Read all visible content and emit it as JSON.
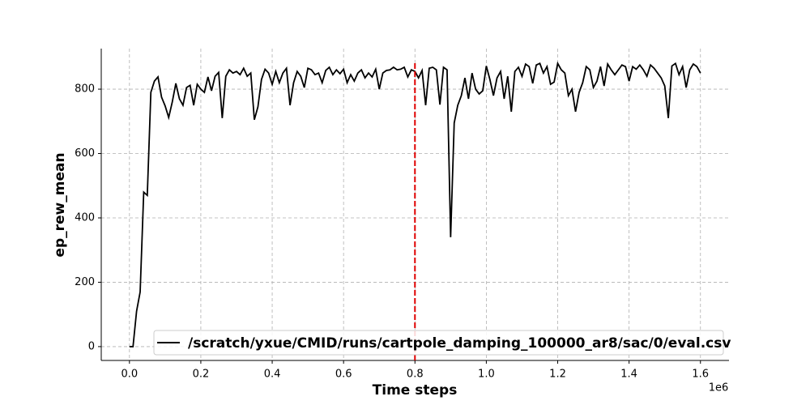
{
  "chart_data": {
    "type": "line",
    "x_label": "Time steps",
    "y_label": "ep_rew_mean",
    "x_offset_label": "1e6",
    "x": [
      0,
      10000,
      20000,
      30000,
      40000,
      50000,
      60000,
      70000,
      80000,
      90000,
      100000,
      110000,
      120000,
      130000,
      140000,
      150000,
      160000,
      170000,
      180000,
      190000,
      200000,
      210000,
      220000,
      230000,
      240000,
      250000,
      260000,
      270000,
      280000,
      290000,
      300000,
      310000,
      320000,
      330000,
      340000,
      350000,
      360000,
      370000,
      380000,
      390000,
      400000,
      410000,
      420000,
      430000,
      440000,
      450000,
      460000,
      470000,
      480000,
      490000,
      500000,
      510000,
      520000,
      530000,
      540000,
      550000,
      560000,
      570000,
      580000,
      590000,
      600000,
      610000,
      620000,
      630000,
      640000,
      650000,
      660000,
      670000,
      680000,
      690000,
      700000,
      710000,
      720000,
      730000,
      740000,
      750000,
      760000,
      770000,
      780000,
      790000,
      800000,
      810000,
      820000,
      830000,
      840000,
      850000,
      860000,
      870000,
      880000,
      890000,
      900000,
      910000,
      920000,
      930000,
      940000,
      950000,
      960000,
      970000,
      980000,
      990000,
      1000000,
      1010000,
      1020000,
      1030000,
      1040000,
      1050000,
      1060000,
      1070000,
      1080000,
      1090000,
      1100000,
      1110000,
      1120000,
      1130000,
      1140000,
      1150000,
      1160000,
      1170000,
      1180000,
      1190000,
      1200000,
      1210000,
      1220000,
      1230000,
      1240000,
      1250000,
      1260000,
      1270000,
      1280000,
      1290000,
      1300000,
      1310000,
      1320000,
      1330000,
      1340000,
      1350000,
      1360000,
      1370000,
      1380000,
      1390000,
      1400000,
      1410000,
      1420000,
      1430000,
      1440000,
      1450000,
      1460000,
      1470000,
      1480000,
      1490000,
      1500000,
      1510000,
      1520000,
      1530000,
      1540000,
      1550000,
      1560000,
      1570000,
      1580000,
      1590000,
      1600000
    ],
    "series": [
      {
        "name": "/scratch/yxue/CMID/runs/cartpole_damping_100000_ar8/sac/0/eval.csv",
        "color": "#000000",
        "values": [
          0,
          0,
          110,
          170,
          480,
          470,
          790,
          825,
          838,
          775,
          748,
          712,
          760,
          818,
          770,
          750,
          805,
          812,
          750,
          815,
          800,
          790,
          838,
          795,
          840,
          852,
          710,
          840,
          860,
          850,
          855,
          845,
          865,
          840,
          850,
          705,
          745,
          830,
          862,
          850,
          815,
          855,
          820,
          850,
          865,
          750,
          820,
          855,
          840,
          805,
          865,
          860,
          845,
          850,
          820,
          858,
          868,
          845,
          860,
          848,
          862,
          820,
          845,
          825,
          850,
          860,
          835,
          850,
          838,
          862,
          800,
          850,
          858,
          860,
          868,
          860,
          862,
          868,
          838,
          860,
          855,
          835,
          858,
          750,
          865,
          868,
          860,
          752,
          868,
          860,
          340,
          695,
          750,
          780,
          835,
          770,
          850,
          800,
          785,
          795,
          872,
          830,
          780,
          835,
          855,
          770,
          840,
          730,
          855,
          868,
          840,
          878,
          870,
          818,
          875,
          880,
          850,
          870,
          815,
          822,
          880,
          860,
          850,
          780,
          800,
          730,
          790,
          820,
          870,
          860,
          805,
          825,
          870,
          810,
          878,
          860,
          845,
          860,
          875,
          870,
          825,
          870,
          862,
          875,
          860,
          840,
          875,
          865,
          850,
          835,
          810,
          710,
          872,
          880,
          845,
          870,
          805,
          860,
          878,
          870,
          850
        ]
      }
    ],
    "vline": {
      "x": 800000,
      "color": "#e00000"
    },
    "xlim": [
      -79000,
      1680000
    ],
    "ylim": [
      -43,
      926
    ],
    "xticks": [
      {
        "value": 0,
        "label": "0.0"
      },
      {
        "value": 200000,
        "label": "0.2"
      },
      {
        "value": 400000,
        "label": "0.4"
      },
      {
        "value": 600000,
        "label": "0.6"
      },
      {
        "value": 800000,
        "label": "0.8"
      },
      {
        "value": 1000000,
        "label": "1.0"
      },
      {
        "value": 1200000,
        "label": "1.2"
      },
      {
        "value": 1400000,
        "label": "1.4"
      },
      {
        "value": 1600000,
        "label": "1.6"
      }
    ],
    "yticks": [
      0,
      200,
      400,
      600,
      800
    ],
    "grid": true,
    "legend": "lower right"
  }
}
